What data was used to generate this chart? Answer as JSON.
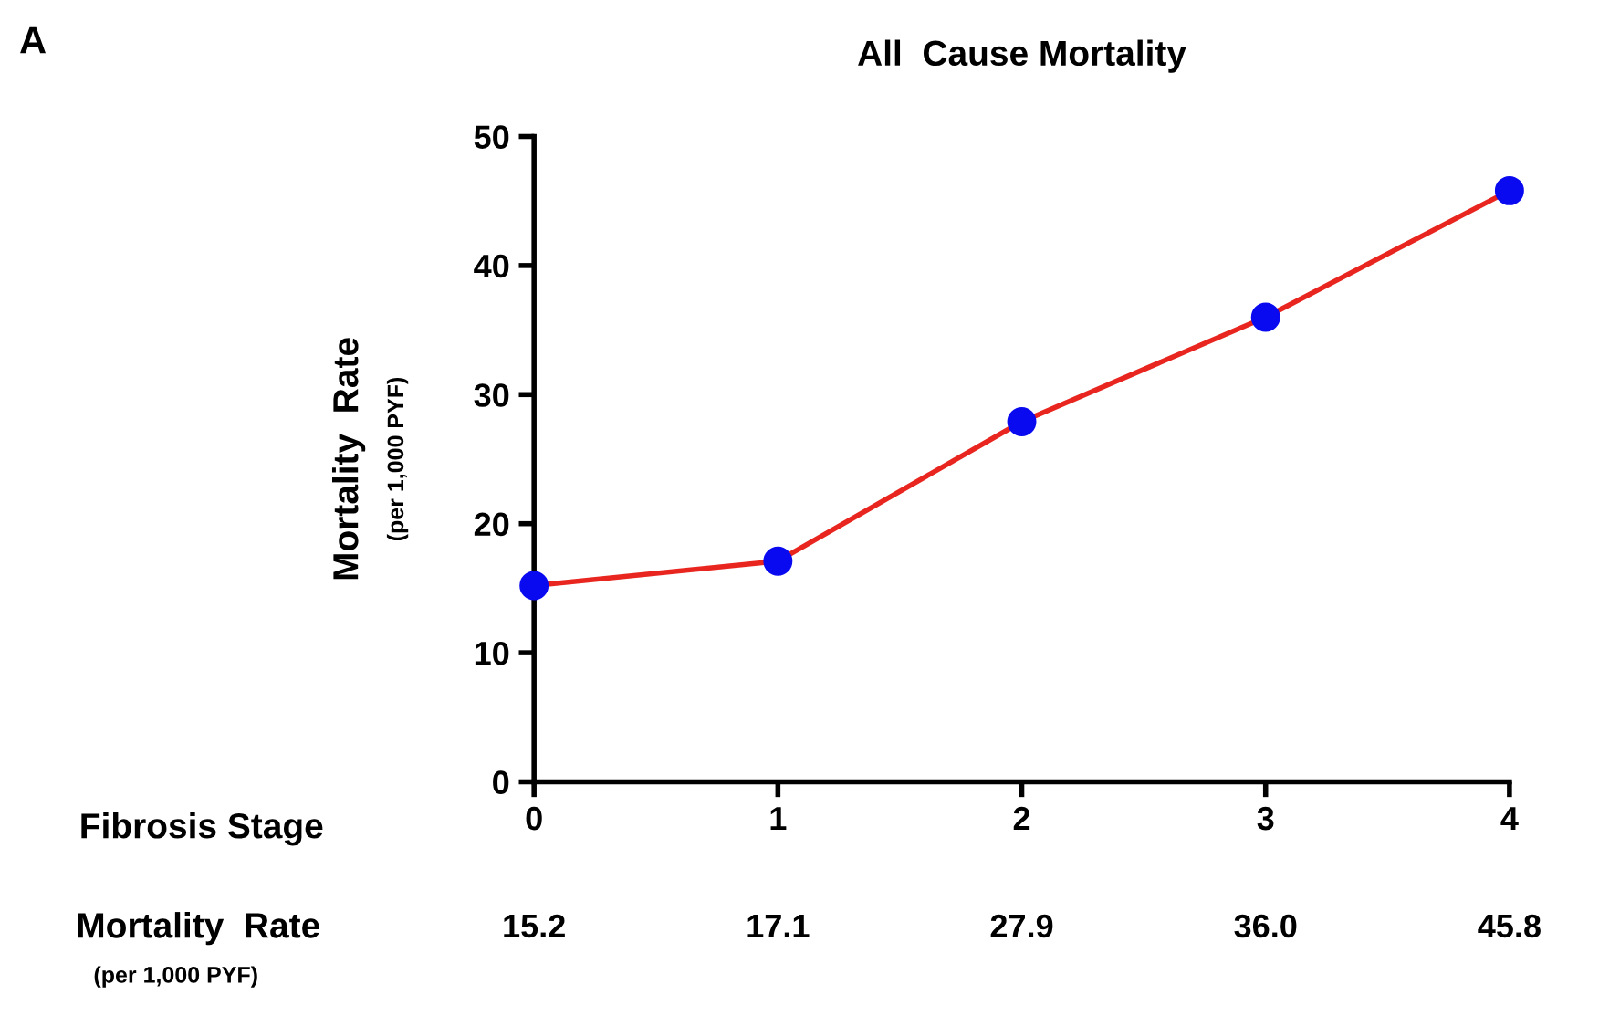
{
  "chart_data": {
    "type": "line",
    "title": "All  Cause Mortality",
    "xlabel": "Fibrosis Stage",
    "ylabel": "Mortality  Rate\n(per 1,000 PYF)",
    "x": [
      0,
      1,
      2,
      3,
      4
    ],
    "xlim": [
      0,
      4
    ],
    "xticks": [
      0,
      1,
      2,
      3,
      4
    ],
    "ylim": [
      0,
      50
    ],
    "yticks": [
      0,
      10,
      20,
      30,
      40,
      50
    ],
    "series": [
      {
        "color": "#e8261f",
        "colors": [
          "#0a0af0",
          "#0a0af0",
          "#0a0af0",
          "#0a0af0",
          "#0a0af0"
        ],
        "values": [
          15.2,
          17.1,
          27.9,
          36.0,
          45.8
        ]
      }
    ],
    "marker": "circle",
    "line_style": "solid",
    "grid": false,
    "legend": false,
    "annotations": [
      "A",
      "Mortality  Rate\n(per 1,000 PYF)",
      "15.2",
      "17.1",
      "27.9",
      "36.0",
      "45.8"
    ]
  }
}
